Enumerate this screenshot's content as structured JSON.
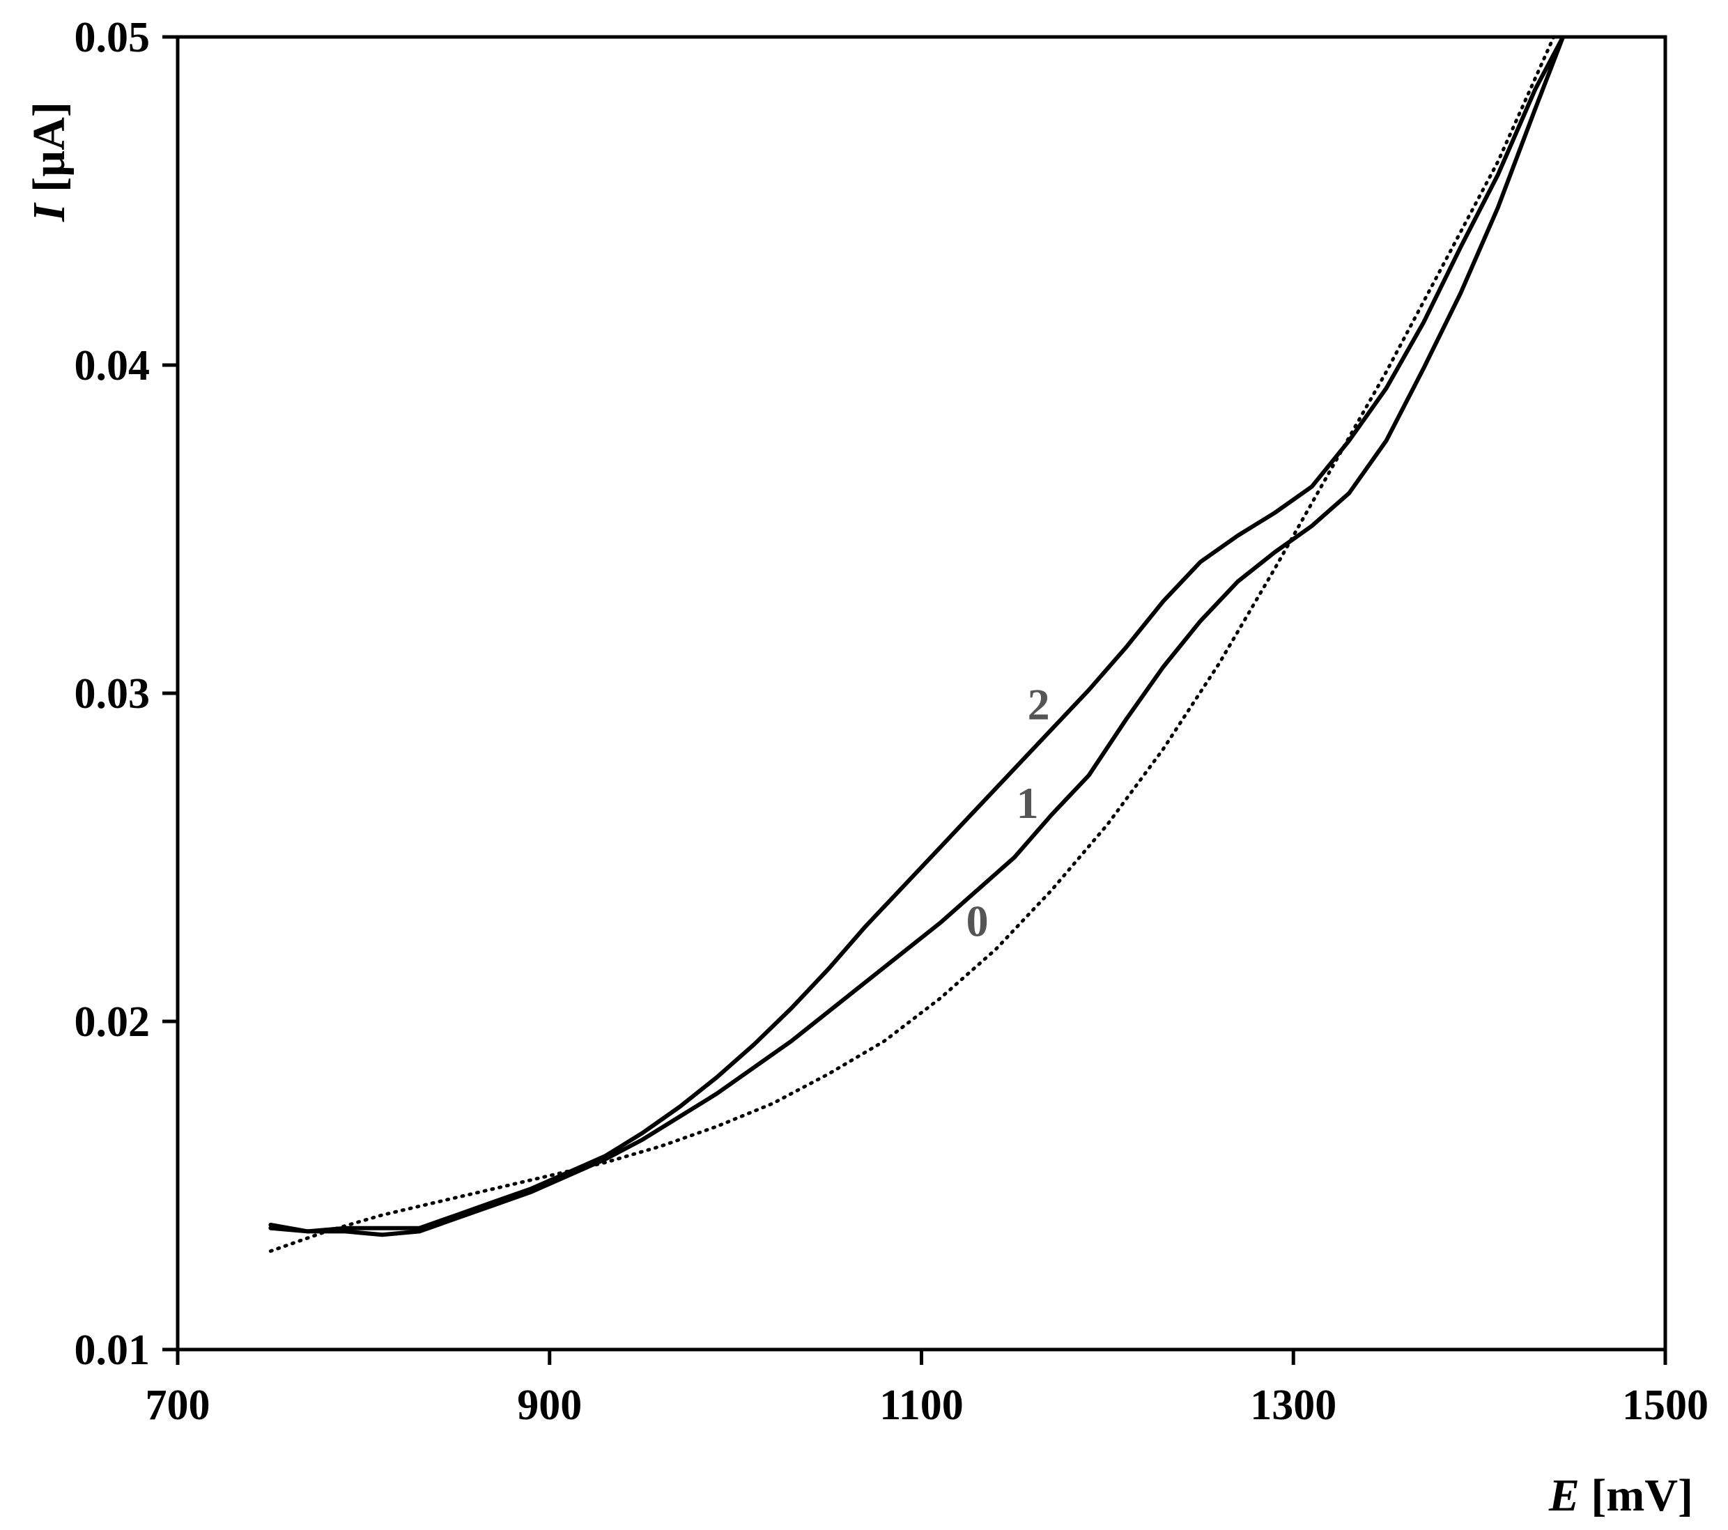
{
  "chart_data": {
    "type": "line",
    "title": "",
    "xlabel": {
      "symbol": "E",
      "unit": "[mV]"
    },
    "ylabel": {
      "symbol": "I",
      "unit": "[µA]"
    },
    "xlim": [
      700,
      1500
    ],
    "ylim": [
      0.01,
      0.05
    ],
    "xticks": [
      700,
      900,
      1100,
      1300,
      1500
    ],
    "yticks": [
      0.01,
      0.02,
      0.03,
      0.04,
      0.05
    ],
    "xtick_labels": [
      "700",
      "900",
      "1100",
      "1300",
      "1500"
    ],
    "ytick_labels": [
      "0.01",
      "0.02",
      "0.03",
      "0.04",
      "0.05"
    ],
    "grid": false,
    "legend": "none",
    "colors": {
      "line": "#000000",
      "curve_label": "#555555"
    },
    "series": [
      {
        "label": "0",
        "style": "dotted",
        "label_at": [
          1130,
          0.0226
        ],
        "x": [
          750,
          780,
          810,
          840,
          870,
          900,
          930,
          960,
          990,
          1020,
          1050,
          1080,
          1110,
          1140,
          1170,
          1200,
          1230,
          1260,
          1290,
          1320,
          1350,
          1380,
          1410,
          1440
        ],
        "y": [
          0.013,
          0.0136,
          0.0141,
          0.0145,
          0.0149,
          0.0153,
          0.0157,
          0.0162,
          0.0168,
          0.0175,
          0.0184,
          0.0194,
          0.0207,
          0.0222,
          0.024,
          0.026,
          0.0283,
          0.0309,
          0.0338,
          0.0368,
          0.0398,
          0.043,
          0.0462,
          0.05
        ]
      },
      {
        "label": "1",
        "style": "solid",
        "label_at": [
          1157,
          0.0262
        ],
        "x": [
          750,
          770,
          790,
          810,
          830,
          850,
          870,
          890,
          910,
          930,
          950,
          970,
          990,
          1010,
          1030,
          1050,
          1070,
          1090,
          1110,
          1130,
          1150,
          1170,
          1190,
          1210,
          1230,
          1250,
          1270,
          1290,
          1310,
          1330,
          1350,
          1370,
          1390,
          1410,
          1430,
          1445
        ],
        "y": [
          0.0137,
          0.0136,
          0.0136,
          0.0135,
          0.0136,
          0.014,
          0.0144,
          0.0148,
          0.0153,
          0.0158,
          0.0164,
          0.0171,
          0.0178,
          0.0186,
          0.0194,
          0.0203,
          0.0212,
          0.0221,
          0.023,
          0.024,
          0.025,
          0.0263,
          0.0275,
          0.0292,
          0.0308,
          0.0322,
          0.0334,
          0.0343,
          0.0351,
          0.0361,
          0.0377,
          0.0399,
          0.0422,
          0.0448,
          0.0478,
          0.05
        ]
      },
      {
        "label": "2",
        "style": "solid",
        "label_at": [
          1163,
          0.0292
        ],
        "x": [
          750,
          770,
          790,
          810,
          830,
          850,
          870,
          890,
          910,
          930,
          950,
          970,
          990,
          1010,
          1030,
          1050,
          1070,
          1090,
          1110,
          1130,
          1150,
          1170,
          1190,
          1210,
          1230,
          1250,
          1270,
          1290,
          1310,
          1330,
          1350,
          1370,
          1390,
          1410,
          1430,
          1445
        ],
        "y": [
          0.0138,
          0.0136,
          0.0137,
          0.0137,
          0.0137,
          0.0141,
          0.0145,
          0.0149,
          0.0154,
          0.0159,
          0.0166,
          0.0174,
          0.0183,
          0.0193,
          0.0204,
          0.0216,
          0.0229,
          0.0241,
          0.0253,
          0.0265,
          0.0277,
          0.0289,
          0.0301,
          0.0314,
          0.0328,
          0.034,
          0.0348,
          0.0355,
          0.0363,
          0.0377,
          0.0393,
          0.0413,
          0.0436,
          0.0458,
          0.0484,
          0.05
        ]
      }
    ]
  }
}
